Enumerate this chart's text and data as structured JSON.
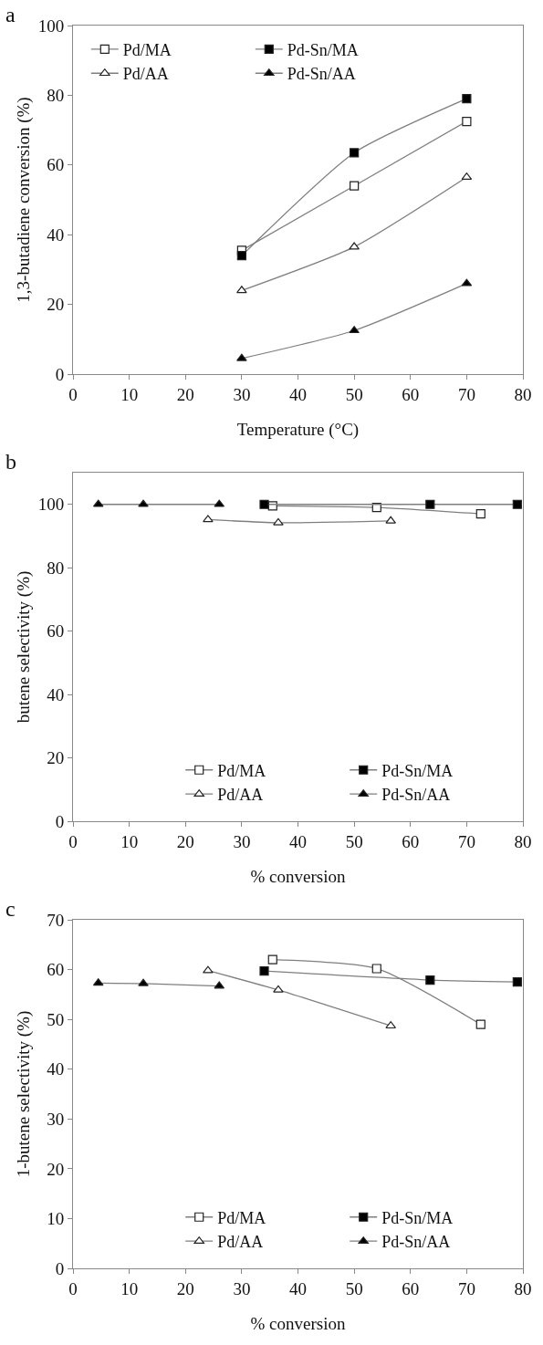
{
  "chart_data": [
    {
      "type": "line",
      "title": "a",
      "xlabel": "Temperature (°C)",
      "ylabel": "1,3-butadiene conversion (%)",
      "xlim": [
        0,
        80
      ],
      "xticks": [
        0,
        10,
        20,
        30,
        40,
        50,
        60,
        70,
        80
      ],
      "ylim": [
        0,
        100
      ],
      "yticks": [
        0,
        20,
        40,
        60,
        80,
        100
      ],
      "grid": false,
      "legend": "top left",
      "line_style": "solid",
      "series": [
        {
          "name": "Pd/MA",
          "color": "#ffffff",
          "marker": "square",
          "x": [
            30,
            50,
            70
          ],
          "values": [
            35.5,
            54,
            72.5
          ]
        },
        {
          "name": "Pd-Sn/MA",
          "color": "#000000",
          "marker": "square",
          "x": [
            30,
            50,
            70
          ],
          "values": [
            34,
            63.5,
            79
          ]
        },
        {
          "name": "Pd/AA",
          "color": "#ffffff",
          "marker": "triangle",
          "x": [
            30,
            50,
            70
          ],
          "values": [
            24,
            36.5,
            56.5
          ]
        },
        {
          "name": "Pd-Sn/AA",
          "color": "#000000",
          "marker": "triangle",
          "x": [
            30,
            50,
            70
          ],
          "values": [
            4.5,
            12.5,
            26
          ]
        }
      ]
    },
    {
      "type": "line",
      "title": "b",
      "xlabel": "% conversion",
      "ylabel": "butene selectivity (%)",
      "xlim": [
        0,
        80
      ],
      "xticks": [
        0,
        10,
        20,
        30,
        40,
        50,
        60,
        70,
        80
      ],
      "ylim": [
        0,
        110
      ],
      "yticks": [
        0,
        20,
        40,
        60,
        80,
        100
      ],
      "grid": false,
      "legend": "bottom right",
      "line_style": "solid",
      "series": [
        {
          "name": "Pd/MA",
          "color": "#ffffff",
          "marker": "square",
          "x": [
            35.5,
            54,
            72.5
          ],
          "values": [
            99.5,
            99,
            97
          ]
        },
        {
          "name": "Pd-Sn/MA",
          "color": "#000000",
          "marker": "square",
          "x": [
            34,
            63.5,
            79
          ],
          "values": [
            100,
            100,
            100
          ]
        },
        {
          "name": "Pd/AA",
          "color": "#ffffff",
          "marker": "triangle",
          "x": [
            24,
            36.5,
            56.5
          ],
          "values": [
            95.2,
            94.2,
            94.8
          ]
        },
        {
          "name": "Pd-Sn/AA",
          "color": "#000000",
          "marker": "triangle",
          "x": [
            4.5,
            12.5,
            26
          ],
          "values": [
            100,
            100,
            100
          ]
        }
      ]
    },
    {
      "type": "line",
      "title": "c",
      "xlabel": "% conversion",
      "ylabel": "1-butene selectivity (%)",
      "xlim": [
        0,
        80
      ],
      "xticks": [
        0,
        10,
        20,
        30,
        40,
        50,
        60,
        70,
        80
      ],
      "ylim": [
        0,
        70
      ],
      "yticks": [
        0,
        10,
        20,
        30,
        40,
        50,
        60,
        70
      ],
      "grid": false,
      "legend": "bottom right",
      "line_style": "solid",
      "series": [
        {
          "name": "Pd/MA",
          "color": "#ffffff",
          "marker": "square",
          "x": [
            35.5,
            54,
            72.5
          ],
          "values": [
            62,
            60.2,
            49
          ]
        },
        {
          "name": "Pd-Sn/MA",
          "color": "#000000",
          "marker": "square",
          "x": [
            34,
            63.5,
            79
          ],
          "values": [
            59.7,
            57.9,
            57.5
          ]
        },
        {
          "name": "Pd/AA",
          "color": "#ffffff",
          "marker": "triangle",
          "x": [
            24,
            36.5,
            56.5
          ],
          "values": [
            59.8,
            55.9,
            48.7
          ]
        },
        {
          "name": "Pd-Sn/AA",
          "color": "#000000",
          "marker": "triangle",
          "x": [
            4.5,
            12.5,
            26
          ],
          "values": [
            57.3,
            57.2,
            56.7
          ]
        }
      ]
    }
  ]
}
